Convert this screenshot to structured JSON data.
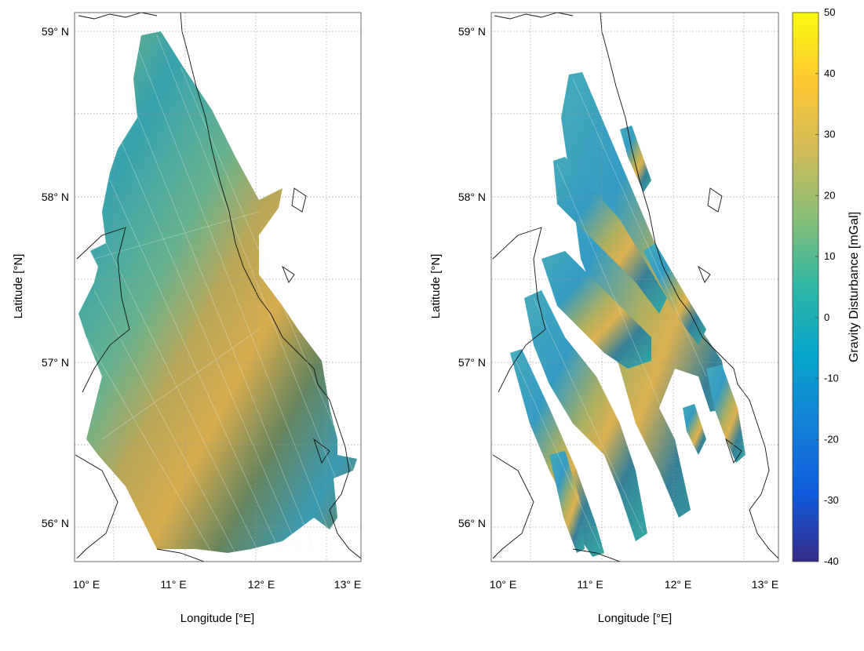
{
  "figure": {
    "left_panel": {
      "ylabel": "Latitude [°N]",
      "xlabel": "Longitude [°E]",
      "lat_ticks": [
        "59° N",
        "58° N",
        "57° N",
        "56° N"
      ],
      "lon_ticks": [
        "10° E",
        "11° E",
        "12° E",
        "13° E"
      ]
    },
    "right_panel": {
      "ylabel": "Latitude [°N]",
      "xlabel": "Longitude [°E]",
      "lat_ticks": [
        "59° N",
        "58° N",
        "57° N",
        "56° N"
      ],
      "lon_ticks": [
        "10° E",
        "11° E",
        "12° E",
        "13° E"
      ]
    },
    "colorbar": {
      "label": "Gravity Disturbance [mGal]",
      "ticks": [
        "50",
        "40",
        "30",
        "20",
        "10",
        "0",
        "-10",
        "-20",
        "-30",
        "-40"
      ],
      "min": -40,
      "max": 50,
      "colormap": [
        "#352a87",
        "#0f5cdd",
        "#1481d6",
        "#06a4ca",
        "#2eb7a4",
        "#87bf77",
        "#d1bb59",
        "#fec832",
        "#f9fb0e"
      ]
    },
    "grid": "dotted",
    "lat_range": [
      55.6,
      59.1
    ],
    "lon_range": [
      9.95,
      13.2
    ]
  }
}
